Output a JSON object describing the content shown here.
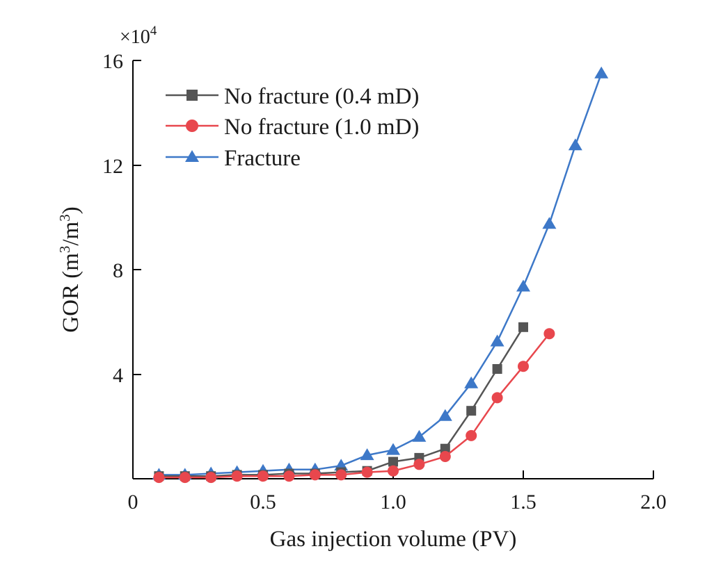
{
  "chart_data": {
    "type": "line",
    "title": "",
    "xlabel": "Gas injection volume (PV)",
    "ylabel": "GOR (m³/m³)",
    "ylabel_parts": {
      "pre": "GOR (m",
      "sup1": "3",
      "mid": "/m",
      "sup2": "3",
      "post": ")"
    },
    "y_multiplier": {
      "base": "×10",
      "exp": "4"
    },
    "xlim": [
      0,
      2.0
    ],
    "ylim": [
      0,
      16
    ],
    "x_ticks": [
      "0",
      "0.5",
      "1.0",
      "1.5",
      "2.0"
    ],
    "y_ticks": [
      "4",
      "8",
      "12",
      "16"
    ],
    "legend_position": "top-left",
    "series": [
      {
        "name": "No fracture (0.4 mD)",
        "color": "#555555",
        "marker": "square",
        "x": [
          0.1,
          0.2,
          0.3,
          0.4,
          0.5,
          0.6,
          0.7,
          0.8,
          0.9,
          1.0,
          1.1,
          1.2,
          1.3,
          1.4,
          1.5
        ],
        "y": [
          0.1,
          0.1,
          0.1,
          0.15,
          0.15,
          0.2,
          0.2,
          0.25,
          0.3,
          0.65,
          0.8,
          1.15,
          2.6,
          4.2,
          5.8
        ]
      },
      {
        "name": "No fracture (1.0 mD)",
        "color": "#e8474d",
        "marker": "circle",
        "x": [
          0.1,
          0.2,
          0.3,
          0.4,
          0.5,
          0.6,
          0.7,
          0.8,
          0.9,
          1.0,
          1.1,
          1.2,
          1.3,
          1.4,
          1.5,
          1.6
        ],
        "y": [
          0.05,
          0.05,
          0.05,
          0.1,
          0.1,
          0.1,
          0.15,
          0.15,
          0.25,
          0.3,
          0.55,
          0.85,
          1.65,
          3.1,
          4.3,
          5.55
        ]
      },
      {
        "name": "Fracture",
        "color": "#3d78c8",
        "marker": "triangle",
        "x": [
          0.1,
          0.2,
          0.3,
          0.4,
          0.5,
          0.6,
          0.7,
          0.8,
          0.9,
          1.0,
          1.1,
          1.2,
          1.3,
          1.4,
          1.5,
          1.6,
          1.7,
          1.8
        ],
        "y": [
          0.15,
          0.15,
          0.2,
          0.25,
          0.3,
          0.35,
          0.35,
          0.5,
          0.9,
          1.1,
          1.6,
          2.4,
          3.65,
          5.25,
          7.35,
          9.75,
          12.75,
          15.5
        ]
      }
    ]
  }
}
